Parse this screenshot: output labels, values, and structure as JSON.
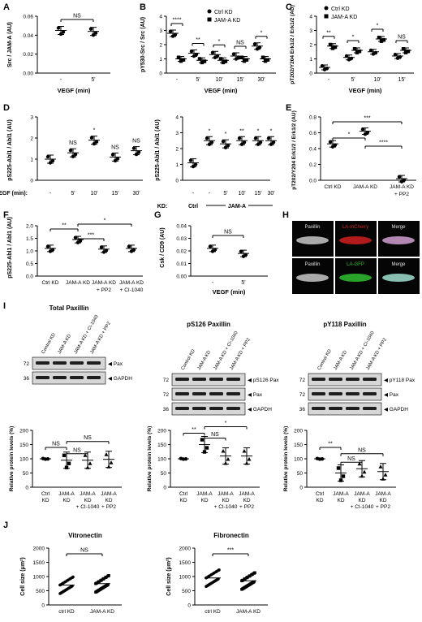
{
  "colors": {
    "ink": "#000000",
    "blot_bg": "#d6d6d6",
    "band": "#1e1e1e",
    "micro_bg": "#050505",
    "micro_red": "#d02020",
    "micro_green": "#30c030",
    "micro_merge": "#c04070"
  },
  "panels": {
    "A": {
      "letter": "A",
      "ylabel": "Src / JAM-A (AU)",
      "xlabel": "VEGF (min)",
      "ticks": [
        "-",
        "5'"
      ],
      "yticks": [
        "0.00",
        "0.02",
        "0.04",
        "0.06"
      ],
      "sig": [
        "NS"
      ]
    },
    "B": {
      "letter": "B",
      "ylabel": "pY530-Src / Src (AU)",
      "xlabel": "VEGF (min)",
      "ticks": [
        "-",
        "5'",
        "10'",
        "15'",
        "30'"
      ],
      "yticks": [
        "0",
        "1",
        "2",
        "3",
        "4"
      ],
      "sig": [
        "****",
        "**",
        "*",
        "NS",
        "*"
      ],
      "legend": [
        "Ctrl KD",
        "JAM-A KD"
      ]
    },
    "C": {
      "letter": "C",
      "ylabel": "pT202/Y204 Erk1/2 / Erk1/2 (AU)",
      "xlabel": "VEGF (min)",
      "ticks": [
        "-",
        "5'",
        "10'",
        "15'"
      ],
      "yticks": [
        "0",
        "1",
        "2",
        "3",
        "4"
      ],
      "sig": [
        "**",
        "*",
        "*",
        "NS"
      ],
      "legend": [
        "Ctrl KD",
        "JAM-A KD"
      ]
    },
    "D1": {
      "letter": "D",
      "ylabel": "pS225-Abl1 / Abl1 (AU)",
      "xlabel_prefix": "VEGF (min):",
      "ticks": [
        "-",
        "5'",
        "10'",
        "15'",
        "30'"
      ],
      "yticks": [
        "0",
        "1",
        "2",
        "3"
      ],
      "sig": [
        "NS",
        "*",
        "NS",
        "NS"
      ]
    },
    "D2": {
      "ylabel": "pS225-Abl1 / Abl1 (AU)",
      "ticks": [
        "-",
        "-",
        "5'",
        "10'",
        "15'",
        "30'"
      ],
      "yticks": [
        "0",
        "1",
        "2",
        "3",
        "4"
      ],
      "sig": [
        "*",
        "*",
        "**",
        "*",
        "*"
      ],
      "kd_label": "KD:",
      "kd_ctrl": "Ctrl",
      "kd_jam": "JAM-A"
    },
    "E": {
      "letter": "E",
      "ylabel": "pT202/Y204 Erk1/2 / Erk1/2 (AU)",
      "ticks": [
        "Ctrl KD",
        "JAM-A KD",
        "JAM-A KD",
        "+ PP2"
      ],
      "yticks": [
        "0.0",
        "0.2",
        "0.4",
        "0.6",
        "0.8"
      ],
      "sig": [
        "***",
        "*",
        "****"
      ]
    },
    "F": {
      "letter": "F",
      "ylabel": "pS225-Abl1 / Abl1 (AU)",
      "ticks": [
        "Ctrl KD",
        "JAM-A KD",
        "JAM-A KD",
        "+ PP2",
        "JAM-A KD",
        "+ CI-1040"
      ],
      "yticks": [
        "0.0",
        "0.5",
        "1.0",
        "1.5",
        "2.0"
      ],
      "sig": [
        "**",
        "***",
        "*"
      ]
    },
    "G": {
      "letter": "G",
      "ylabel": "Csk / CD9 (AU)",
      "xlabel": "VEGF (min)",
      "ticks": [
        "-",
        "5'"
      ],
      "yticks": [
        "0.00",
        "0.01",
        "0.02",
        "0.03",
        "0.04"
      ],
      "sig": [
        "NS"
      ]
    },
    "H": {
      "letter": "H",
      "labels": [
        "Paxillin",
        "LA-mCherry",
        "Merge",
        "Paxillin",
        "LA-GFP",
        "Merge"
      ]
    },
    "I": {
      "letter": "I",
      "titles": [
        "Total Paxillin",
        "pS126 Paxillin",
        "pY118 Paxillin"
      ],
      "lanes1": [
        "Control KD",
        "JAM-A KD",
        "JAM-A KD + CI-1040",
        "JAM-A KD + PP2"
      ],
      "lanes2": [
        "Control KD",
        "JAM-A KD",
        "JAM-A KD + CI-1040",
        "JAM-A KD + PP2"
      ],
      "lanes3": [
        "Control KD",
        "JAM-A KD",
        "JAM-A KD + CI-1040",
        "JAM-A KD + PP2"
      ],
      "mw1": [
        "72",
        "36"
      ],
      "bands1": [
        "Pax",
        "GAPDH"
      ],
      "mw2": [
        "72",
        "72",
        "36"
      ],
      "bands2": [
        "pS126 Pax",
        "Pax",
        "GAPDH"
      ],
      "mw3": [
        "72",
        "72",
        "36"
      ],
      "bands3": [
        "pY118 Pax",
        "Pax",
        "GAPDH"
      ],
      "ylabel": "Relative protein levels (%)",
      "yticks": [
        "0",
        "50",
        "100",
        "150",
        "200"
      ],
      "xt": [
        "Ctrl KD",
        "JAM-A KD",
        "JAM-A KD + CI-1040",
        "JAM-A KD + PP2"
      ],
      "sig1": [
        "NS",
        "NS",
        "NS"
      ],
      "sig2": [
        "**",
        "NS",
        "*"
      ],
      "sig3": [
        "**",
        "NS",
        "NS"
      ]
    },
    "J": {
      "letter": "J",
      "titles": [
        "Vitronectin",
        "Fibronectin"
      ],
      "ylabel": "Cell size (μm²)",
      "yticks1": [
        "0",
        "500",
        "1000",
        "1500",
        "2000"
      ],
      "yticks2": [
        "0",
        "500",
        "1000",
        "1500",
        "2000"
      ],
      "xt": [
        "ctrl KD",
        "JAM-A KD"
      ],
      "sig": [
        "NS",
        "***"
      ]
    }
  },
  "chart_data": [
    {
      "type": "scatter",
      "panel": "A",
      "categories": [
        "-",
        "5'"
      ],
      "values": [
        0.045,
        0.044
      ]
    },
    {
      "type": "scatter",
      "panel": "B",
      "categories": [
        "-",
        "5'",
        "10'",
        "15'",
        "30'"
      ],
      "series": [
        {
          "name": "Ctrl KD",
          "values": [
            2.8,
            1.4,
            1.3,
            1.2,
            1.9
          ]
        },
        {
          "name": "JAM-A KD",
          "values": [
            1.0,
            0.9,
            0.9,
            1.0,
            1.0
          ]
        }
      ]
    },
    {
      "type": "scatter",
      "panel": "C",
      "categories": [
        "-",
        "5'",
        "10'",
        "15'"
      ],
      "series": [
        {
          "name": "Ctrl KD",
          "values": [
            0.4,
            1.1,
            1.5,
            1.2
          ]
        },
        {
          "name": "JAM-A KD",
          "values": [
            1.9,
            1.6,
            2.4,
            1.6
          ]
        }
      ]
    },
    {
      "type": "scatter",
      "panel": "D-left",
      "categories": [
        "-",
        "5'",
        "10'",
        "15'",
        "30'"
      ],
      "values": [
        1.0,
        1.3,
        1.9,
        1.1,
        1.4
      ]
    },
    {
      "type": "scatter",
      "panel": "D-right",
      "categories": [
        "-",
        "-",
        "5'",
        "10'",
        "15'",
        "30'"
      ],
      "values": [
        1.1,
        2.5,
        2.3,
        2.5,
        2.5,
        2.5
      ]
    },
    {
      "type": "scatter",
      "panel": "E",
      "categories": [
        "Ctrl KD",
        "JAM-A KD",
        "JAM-A KD + PP2"
      ],
      "values": [
        0.46,
        0.62,
        0.02
      ]
    },
    {
      "type": "scatter",
      "panel": "F",
      "categories": [
        "Ctrl KD",
        "JAM-A KD",
        "JAM-A KD + PP2",
        "JAM-A KD + CI-1040"
      ],
      "values": [
        1.1,
        1.45,
        1.07,
        1.1
      ]
    },
    {
      "type": "scatter",
      "panel": "G",
      "categories": [
        "-",
        "5'"
      ],
      "values": [
        0.022,
        0.018
      ]
    },
    {
      "type": "scatter",
      "panel": "I-total",
      "categories": [
        "Ctrl KD",
        "JAM-A KD",
        "JAM-A KD + CI-1040",
        "JAM-A KD + PP2"
      ],
      "values": [
        100,
        95,
        95,
        98
      ]
    },
    {
      "type": "scatter",
      "panel": "I-pS126",
      "categories": [
        "Ctrl KD",
        "JAM-A KD",
        "JAM-A KD + CI-1040",
        "JAM-A KD + PP2"
      ],
      "values": [
        100,
        150,
        110,
        110
      ]
    },
    {
      "type": "scatter",
      "panel": "I-pY118",
      "categories": [
        "Ctrl KD",
        "JAM-A KD",
        "JAM-A KD + CI-1040",
        "JAM-A KD + PP2"
      ],
      "values": [
        100,
        50,
        65,
        55
      ]
    },
    {
      "type": "scatter",
      "panel": "J-vitronectin",
      "categories": [
        "ctrl KD",
        "JAM-A KD"
      ],
      "values": [
        700,
        750
      ]
    },
    {
      "type": "scatter",
      "panel": "J-fibronectin",
      "categories": [
        "ctrl KD",
        "JAM-A KD"
      ],
      "values": [
        950,
        850
      ]
    }
  ]
}
